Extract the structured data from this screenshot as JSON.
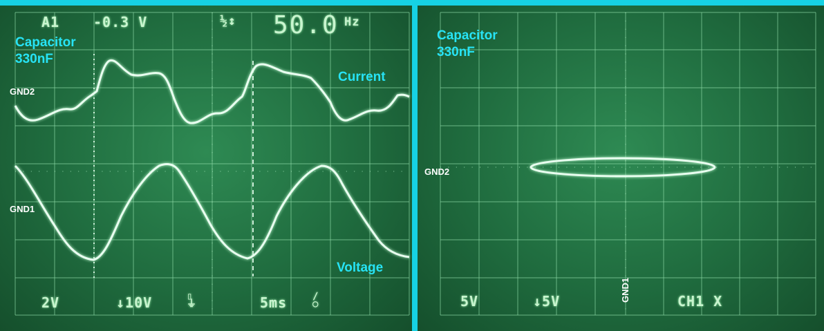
{
  "colors": {
    "frame": "#16d2e4",
    "screen": "#1f6b3e",
    "grid": "#8fdcaa",
    "trace": "#e9fff0",
    "annotation_cyan": "#27e3f5",
    "annotation_white": "#ffffff"
  },
  "left_scope": {
    "readout_top": {
      "channel": "A1",
      "offset": "-0.3 V",
      "frequency_value": "50.0",
      "frequency_unit": "Hz"
    },
    "readout_bottom": {
      "ch1_scale": "2V",
      "ch2_scale": "↓10V",
      "timebase": "5ms"
    },
    "annotations": {
      "component_line1": "Capacitor",
      "component_line2": "330nF",
      "current_label": "Current",
      "voltage_label": "Voltage",
      "gnd2_label": "GND2",
      "gnd1_label": "GND1"
    }
  },
  "right_scope": {
    "readout_bottom": {
      "ch1_scale": "5V",
      "ch2_scale": "↓5V",
      "gnd_marker": "GND1",
      "mode": "CH1 X"
    },
    "annotations": {
      "component_line1": "Capacitor",
      "component_line2": "330nF",
      "gnd2_label": "GND2"
    }
  }
}
